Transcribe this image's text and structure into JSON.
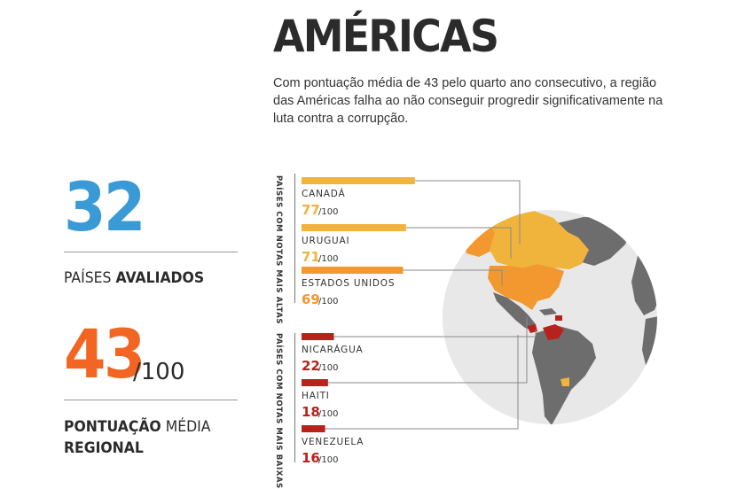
{
  "header": {
    "title": "AMÉRICAS",
    "subtitle": "Com pontuação média de 43 pelo quarto ano consecutivo, a região das Américas falha ao não conseguir progredir significativamente na luta contra a corrupção."
  },
  "stats": {
    "countries_value": "32",
    "countries_label_plain": "PAÍSES ",
    "countries_label_bold": "AVALIADOS",
    "avg_value": "43",
    "avg_denominator": "/100",
    "avg_label_bold1": "PONTUAÇÃO",
    "avg_label_plain": " MÉDIA",
    "avg_label_bold2": "REGIONAL"
  },
  "groups": {
    "top_label": "PAÍSES COM NOTAS MAIS ALTAS",
    "bottom_label": "PAÍSES COM NOTAS MAIS BAIXAS"
  },
  "colors": {
    "blue": "#3a9ad6",
    "orange": "#f26522",
    "score_high": "#f0b43c",
    "score_us": "#f3972f",
    "score_low": "#b8221c",
    "map_grey": "#6d6d6d",
    "ocean": "#e8e8e8"
  },
  "chart_data": {
    "type": "bar",
    "xlim": [
      0,
      100
    ],
    "denominator": "/100",
    "categories": [
      "CANADÁ",
      "URUGUAI",
      "ESTADOS UNIDOS",
      "NICARÁGUA",
      "HAITI",
      "VENEZUELA"
    ],
    "values": [
      77,
      71,
      69,
      22,
      18,
      16
    ],
    "groups": [
      "top",
      "top",
      "top",
      "bottom",
      "bottom",
      "bottom"
    ]
  }
}
